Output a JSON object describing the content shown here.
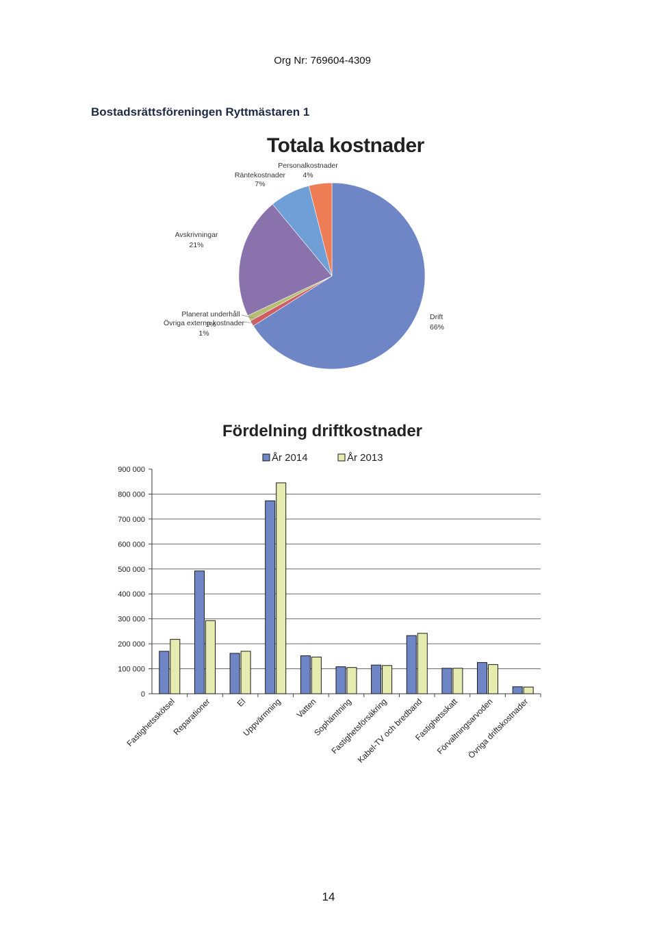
{
  "header": {
    "org_nr": "Org Nr: 769604-4309",
    "association": "Bostadsrättsföreningen Ryttmästaren 1"
  },
  "page_number": "14",
  "chart_data": [
    {
      "type": "pie",
      "title": "Totala kostnader",
      "slices": [
        {
          "label": "Drift",
          "pct_label": "66%",
          "value": 66,
          "color": "#6f86c6"
        },
        {
          "label": "Övriga externa kostnader",
          "pct_label": "1%",
          "value": 1,
          "color": "#cd5d63"
        },
        {
          "label": "Planerat underhåll",
          "pct_label": "1%",
          "value": 1,
          "color": "#b8bd74"
        },
        {
          "label": "Avskrivningar",
          "pct_label": "21%",
          "value": 21,
          "color": "#8a72ac"
        },
        {
          "label": "Räntekostnader",
          "pct_label": "7%",
          "value": 7,
          "color": "#6f9fd6"
        },
        {
          "label": "Personalkostnader",
          "pct_label": "4%",
          "value": 4,
          "color": "#ee7d55"
        }
      ]
    },
    {
      "type": "bar",
      "title": "Fördelning driftkostnader",
      "categories": [
        "Fastighetsskötsel",
        "Reparationer",
        "El",
        "Uppvärmning",
        "Vatten",
        "Sophämtning",
        "Fastighetsförsäkring",
        "Kabel-TV och bredband",
        "Fastighetsskatt",
        "Förvaltningsarvoden",
        "Övriga driftskostnader"
      ],
      "series": [
        {
          "name": "År 2014",
          "color": "#6f86c6",
          "values": [
            170000,
            492000,
            162000,
            773000,
            152000,
            108000,
            115000,
            233000,
            102000,
            125000,
            28000
          ]
        },
        {
          "name": "År 2013",
          "color": "#e6ebb0",
          "values": [
            218000,
            293000,
            170000,
            845000,
            147000,
            105000,
            113000,
            242000,
            102000,
            117000,
            27000
          ]
        }
      ],
      "ylim": [
        0,
        900000
      ],
      "yticks": [
        0,
        100000,
        200000,
        300000,
        400000,
        500000,
        600000,
        700000,
        800000,
        900000
      ],
      "ytick_labels": [
        "0",
        "100 000",
        "200 000",
        "300 000",
        "400 000",
        "500 000",
        "600 000",
        "700 000",
        "800 000",
        "900 000"
      ],
      "grid": true,
      "legend": "top"
    }
  ]
}
